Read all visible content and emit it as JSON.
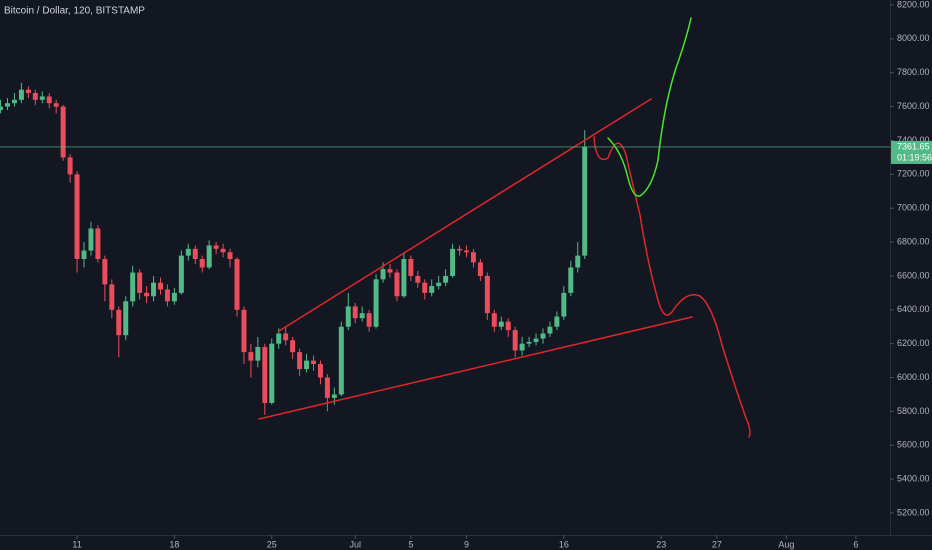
{
  "chart_data": {
    "type": "candlestick",
    "title": "Bitcoin / Dollar, 120, BITSTAMP",
    "up_color": "#53b987",
    "down_color": "#eb4d5c",
    "grid": false,
    "x": [
      5.5,
      6,
      6.5,
      7,
      7.5,
      8,
      8.5,
      9,
      9.5,
      10,
      10.5,
      11,
      11.5,
      12,
      12.5,
      13,
      13.5,
      14,
      14.5,
      15,
      15.5,
      16,
      16.5,
      17,
      17.5,
      18,
      18.5,
      19,
      19.5,
      20,
      20.5,
      21,
      21.5,
      22,
      22.5,
      23,
      23.5,
      24,
      24.5,
      25,
      25.5,
      26,
      26.5,
      27,
      27.5,
      28,
      28.5,
      29,
      29.5,
      30,
      30.5,
      31,
      31.5,
      32,
      32.5,
      33,
      33.5,
      34,
      34.5,
      35,
      35.5,
      36,
      36.5,
      37,
      37.5,
      38,
      38.5,
      39,
      39.5,
      40,
      40.5,
      41,
      41.5,
      42,
      42.5,
      43,
      43.5,
      44,
      44.5,
      45,
      45.5,
      46,
      46.5,
      47,
      47.5
    ],
    "open": [
      7580,
      7600,
      7620,
      7640,
      7700,
      7680,
      7640,
      7660,
      7620,
      7600,
      7300,
      7200,
      6700,
      6750,
      6880,
      6700,
      6550,
      6400,
      6250,
      6450,
      6620,
      6500,
      6480,
      6560,
      6520,
      6450,
      6500,
      6720,
      6760,
      6700,
      6650,
      6780,
      6760,
      6740,
      6700,
      6400,
      6150,
      6100,
      6180,
      5850,
      6200,
      6260,
      6220,
      6150,
      6050,
      6100,
      6080,
      6000,
      5880,
      5900,
      6300,
      6420,
      6350,
      6380,
      6300,
      6580,
      6640,
      6620,
      6480,
      6700,
      6600,
      6560,
      6500,
      6540,
      6560,
      6600,
      6760,
      6750,
      6740,
      6680,
      6600,
      6380,
      6300,
      6330,
      6280,
      6160,
      6200,
      6210,
      6230,
      6260,
      6300,
      6360,
      6500,
      6650,
      6720
    ],
    "high": [
      7640,
      7650,
      7680,
      7740,
      7720,
      7700,
      7690,
      7680,
      7640,
      7610,
      7320,
      7220,
      6800,
      6920,
      6900,
      6720,
      6580,
      6420,
      6480,
      6660,
      6640,
      6540,
      6600,
      6590,
      6550,
      6530,
      6750,
      6790,
      6780,
      6720,
      6810,
      6800,
      6790,
      6760,
      6710,
      6420,
      6200,
      6240,
      6200,
      6230,
      6290,
      6300,
      6240,
      6170,
      6140,
      6130,
      6100,
      6020,
      5940,
      6330,
      6500,
      6440,
      6420,
      6400,
      6610,
      6680,
      6670,
      6640,
      6740,
      6720,
      6630,
      6580,
      6580,
      6600,
      6640,
      6790,
      6780,
      6780,
      6760,
      6700,
      6620,
      6400,
      6360,
      6350,
      6300,
      6240,
      6240,
      6260,
      6290,
      6330,
      6390,
      6540,
      6690,
      6800,
      7460
    ],
    "low": [
      7560,
      7580,
      7600,
      7620,
      7650,
      7610,
      7620,
      7590,
      7560,
      7280,
      7150,
      6620,
      6650,
      6720,
      6680,
      6450,
      6350,
      6120,
      6220,
      6420,
      6460,
      6440,
      6450,
      6490,
      6420,
      6430,
      6490,
      6690,
      6670,
      6620,
      6640,
      6730,
      6710,
      6650,
      6360,
      6080,
      6000,
      6060,
      5780,
      5840,
      6170,
      6190,
      6110,
      6010,
      6030,
      6040,
      5960,
      5800,
      5840,
      5890,
      6280,
      6320,
      6330,
      6270,
      6290,
      6560,
      6590,
      6450,
      6470,
      6570,
      6530,
      6460,
      6480,
      6520,
      6540,
      6590,
      6720,
      6710,
      6650,
      6570,
      6340,
      6270,
      6280,
      6240,
      6120,
      6130,
      6180,
      6190,
      6200,
      6240,
      6280,
      6340,
      6480,
      6620,
      6700
    ],
    "close": [
      7600,
      7620,
      7640,
      7700,
      7680,
      7640,
      7660,
      7620,
      7600,
      7300,
      7200,
      6700,
      6750,
      6880,
      6700,
      6550,
      6400,
      6250,
      6450,
      6620,
      6500,
      6480,
      6560,
      6520,
      6450,
      6500,
      6720,
      6760,
      6700,
      6650,
      6780,
      6760,
      6740,
      6700,
      6400,
      6150,
      6100,
      6180,
      5850,
      6200,
      6260,
      6220,
      6150,
      6050,
      6100,
      6080,
      6000,
      5880,
      5900,
      6300,
      6420,
      6350,
      6380,
      6300,
      6580,
      6640,
      6620,
      6480,
      6700,
      6600,
      6560,
      6500,
      6540,
      6560,
      6600,
      6760,
      6750,
      6740,
      6680,
      6600,
      6380,
      6300,
      6330,
      6280,
      6160,
      6200,
      6210,
      6230,
      6260,
      6300,
      6360,
      6500,
      6650,
      6720,
      7362
    ],
    "xlim": [
      5.46,
      69.45
    ],
    "xticks": [
      {
        "value": 11,
        "label": "11"
      },
      {
        "value": 18,
        "label": "18"
      },
      {
        "value": 25,
        "label": "25"
      },
      {
        "value": 31,
        "label": "Jul"
      },
      {
        "value": 35,
        "label": "5"
      },
      {
        "value": 39,
        "label": "9"
      },
      {
        "value": 46,
        "label": "16"
      },
      {
        "value": 53,
        "label": "23"
      },
      {
        "value": 57,
        "label": "27"
      },
      {
        "value": 62,
        "label": "Aug"
      },
      {
        "value": 67,
        "label": "6"
      }
    ],
    "ylim": [
      5170,
      8230
    ],
    "yticks": [
      {
        "value": 5200,
        "label": "5200.00"
      },
      {
        "value": 5400,
        "label": "5400.00"
      },
      {
        "value": 5600,
        "label": "5600.00"
      },
      {
        "value": 5800,
        "label": "5800.00"
      },
      {
        "value": 6000,
        "label": "6000.00"
      },
      {
        "value": 6200,
        "label": "6200.00"
      },
      {
        "value": 6400,
        "label": "6400.00"
      },
      {
        "value": 6600,
        "label": "6600.00"
      },
      {
        "value": 6800,
        "label": "6800.00"
      },
      {
        "value": 7000,
        "label": "7000.00"
      },
      {
        "value": 7200,
        "label": "7200.00"
      },
      {
        "value": 7400,
        "label": "7400.00"
      },
      {
        "value": 7600,
        "label": "7600.00"
      },
      {
        "value": 7800,
        "label": "7800.00"
      },
      {
        "value": 8000,
        "label": "8000.00"
      },
      {
        "value": 8200,
        "label": "8200.00"
      }
    ],
    "last_price": 7361.65,
    "countdown": "01:19:56",
    "last_price_color": "#53b987"
  }
}
